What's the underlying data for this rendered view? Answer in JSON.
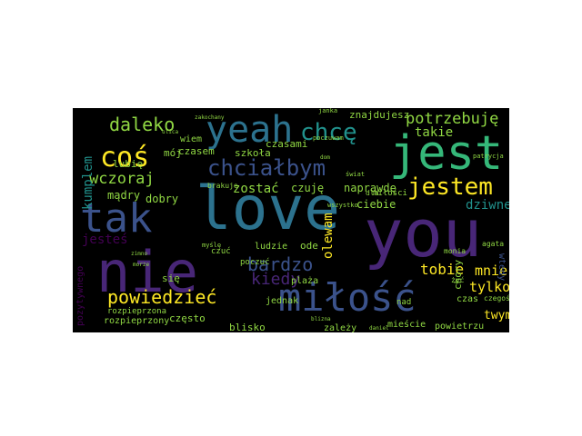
{
  "palette": {
    "background": "#000000",
    "purple": "#482677",
    "indigo": "#3b528b",
    "blue": "#2c728e",
    "teal": "#21918c",
    "green": "#35b779",
    "lime": "#90d743",
    "yellow": "#fde725",
    "dark": "#440154"
  },
  "words": [
    {
      "text": "love"
    },
    {
      "text": "you"
    },
    {
      "text": "nie"
    },
    {
      "text": "jest"
    },
    {
      "text": "tak"
    },
    {
      "text": "miłość"
    },
    {
      "text": "yeah"
    },
    {
      "text": "chcę"
    },
    {
      "text": "coś"
    },
    {
      "text": "chciałbym"
    },
    {
      "text": "jestem"
    },
    {
      "text": "dalekо"
    },
    {
      "text": "powiedzieć"
    },
    {
      "text": "potrzebuję"
    },
    {
      "text": "bardzo"
    },
    {
      "text": "wczoraj"
    },
    {
      "text": "kiedy"
    },
    {
      "text": "olewam"
    },
    {
      "text": "tobie"
    },
    {
      "text": "mnie"
    },
    {
      "text": "tylko"
    },
    {
      "text": "twym"
    },
    {
      "text": "dziwne"
    },
    {
      "text": "takie"
    },
    {
      "text": "jesteś"
    },
    {
      "text": "kumplem"
    },
    {
      "text": "zostać"
    },
    {
      "text": "mądry"
    },
    {
      "text": "dobry"
    },
    {
      "text": "znajdujesz"
    },
    {
      "text": "naprawdę"
    },
    {
      "text": "czasem"
    },
    {
      "text": "czasami"
    },
    {
      "text": "szkoła"
    },
    {
      "text": "wiem"
    },
    {
      "text": "lubię"
    },
    {
      "text": "mój"
    },
    {
      "text": "czuję"
    },
    {
      "text": "ciebie"
    },
    {
      "text": "miłości"
    },
    {
      "text": "pozytywnego"
    },
    {
      "text": "rozpieprzony"
    },
    {
      "text": "rozpieprzona"
    },
    {
      "text": "często"
    },
    {
      "text": "blisko"
    },
    {
      "text": "jednak"
    },
    {
      "text": "plaża"
    },
    {
      "text": "ode"
    },
    {
      "text": "się"
    },
    {
      "text": "nad"
    },
    {
      "text": "chory"
    },
    {
      "text": "wtedy"
    },
    {
      "text": "czas"
    },
    {
      "text": "mieście"
    },
    {
      "text": "powietrzu"
    },
    {
      "text": "zależy"
    },
    {
      "text": "ludzie"
    },
    {
      "text": "poczuć"
    },
    {
      "text": "czuć"
    },
    {
      "text": "brakuje"
    },
    {
      "text": "agata"
    },
    {
      "text": "żyć"
    },
    {
      "text": "monia"
    },
    {
      "text": "patrycja"
    },
    {
      "text": "czegoś"
    },
    {
      "text": "wszystko"
    },
    {
      "text": "dla"
    },
    {
      "text": "daniel"
    },
    {
      "text": "zakochany"
    },
    {
      "text": "blizna"
    },
    {
      "text": "zimno"
    },
    {
      "text": "morze"
    },
    {
      "text": "ulica"
    },
    {
      "text": "dom"
    },
    {
      "text": "janka"
    },
    {
      "text": "poczuwam"
    },
    {
      "text": "myślę"
    },
    {
      "text": "świat"
    }
  ]
}
